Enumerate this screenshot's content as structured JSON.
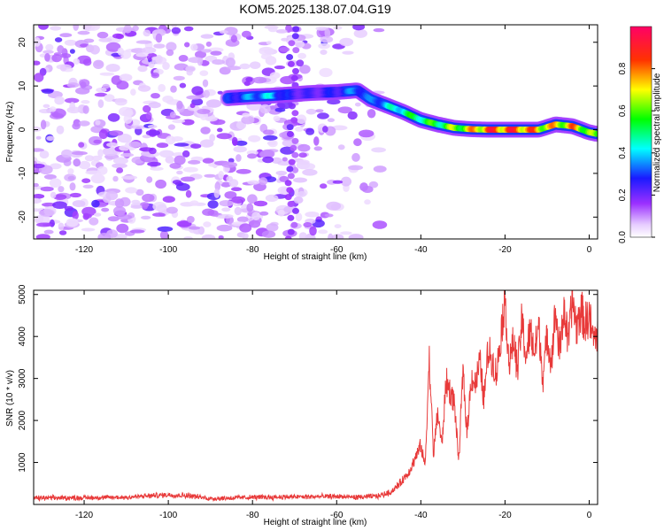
{
  "title": "KOM5.2025.138.07.04.G19",
  "colors": {
    "snr_line": "#e83a3a",
    "axis": "#000000",
    "background": "#ffffff"
  },
  "chart_data": [
    {
      "type": "heatmap",
      "title": "KOM5.2025.138.07.04.G19",
      "xlabel": "Height of straight line (km)",
      "ylabel": "Frequency (Hz)",
      "xlim": [
        -132,
        2
      ],
      "ylim": [
        -25,
        24
      ],
      "x_ticks": [
        "-120",
        "-100",
        "-80",
        "-60",
        "-40",
        "-20",
        "0"
      ],
      "y_ticks": [
        "-20",
        "-10",
        "0",
        "10",
        "20"
      ],
      "colorbar": {
        "label": "Normalized spectral amplitude",
        "range": [
          0,
          1
        ],
        "ticks": [
          "0.0",
          "0.2",
          "0.4",
          "0.6",
          "0.8"
        ],
        "colormap": "rainbow (white-violet-blue-cyan-green-yellow-red-magenta)"
      },
      "signal_track": {
        "height_km": [
          -86,
          -80,
          -75,
          -72,
          -66,
          -60,
          -55,
          -52,
          -48,
          -44,
          -40,
          -36,
          -32,
          -28,
          -24,
          -20,
          -16,
          -12,
          -8,
          -4,
          0,
          2
        ],
        "frequency_hz": [
          7.2,
          7.6,
          7.8,
          8.0,
          8.4,
          8.6,
          9.0,
          7.0,
          5.5,
          4.0,
          2.2,
          1.2,
          0.4,
          0.1,
          0.0,
          0.0,
          0.0,
          0.0,
          1.2,
          0.8,
          -0.6,
          -1.0
        ],
        "amplitude": [
          0.3,
          0.4,
          0.45,
          0.3,
          0.25,
          0.3,
          0.4,
          0.35,
          0.45,
          0.55,
          0.6,
          0.62,
          0.7,
          0.8,
          0.95,
          0.95,
          0.95,
          0.85,
          0.8,
          0.85,
          0.75,
          0.6
        ]
      },
      "noise_extent_km": [
        -132,
        -48
      ]
    },
    {
      "type": "line",
      "xlabel": "Height of straight line (km)",
      "ylabel": "SNR (10 * v/v)",
      "xlim": [
        -132,
        2
      ],
      "ylim": [
        0,
        5100
      ],
      "x_ticks": [
        "-120",
        "-100",
        "-80",
        "-60",
        "-40",
        "-20",
        "0"
      ],
      "y_ticks": [
        "1000",
        "2000",
        "3000",
        "4000",
        "5000"
      ],
      "series": [
        {
          "x": [
            -132,
            -120,
            -110,
            -100,
            -95,
            -90,
            -80,
            -70,
            -60,
            -55,
            -50,
            -47,
            -45,
            -43,
            -42,
            -40,
            -39,
            -38,
            -37,
            -36,
            -35,
            -34,
            -32,
            -31,
            -30,
            -29,
            -28,
            -27,
            -26,
            -25,
            -24,
            -22,
            -20,
            -19,
            -18,
            -17,
            -16,
            -15,
            -14,
            -13,
            -12,
            -11,
            -10,
            -9,
            -8,
            -7,
            -6,
            -5,
            -4,
            -3,
            -2,
            -1,
            0,
            1,
            2
          ],
          "y": [
            150,
            160,
            170,
            230,
            210,
            140,
            170,
            180,
            190,
            170,
            200,
            300,
            500,
            750,
            950,
            1400,
            900,
            3450,
            1200,
            2200,
            1400,
            2950,
            2400,
            1000,
            3150,
            1700,
            3050,
            2850,
            3400,
            2500,
            3700,
            3100,
            4950,
            3300,
            3900,
            3200,
            4400,
            3500,
            4150,
            3600,
            4250,
            3000,
            4000,
            3400,
            4600,
            3600,
            4700,
            3800,
            4900,
            4200,
            4650,
            4300,
            4500,
            3900,
            4150
          ]
        }
      ]
    }
  ]
}
